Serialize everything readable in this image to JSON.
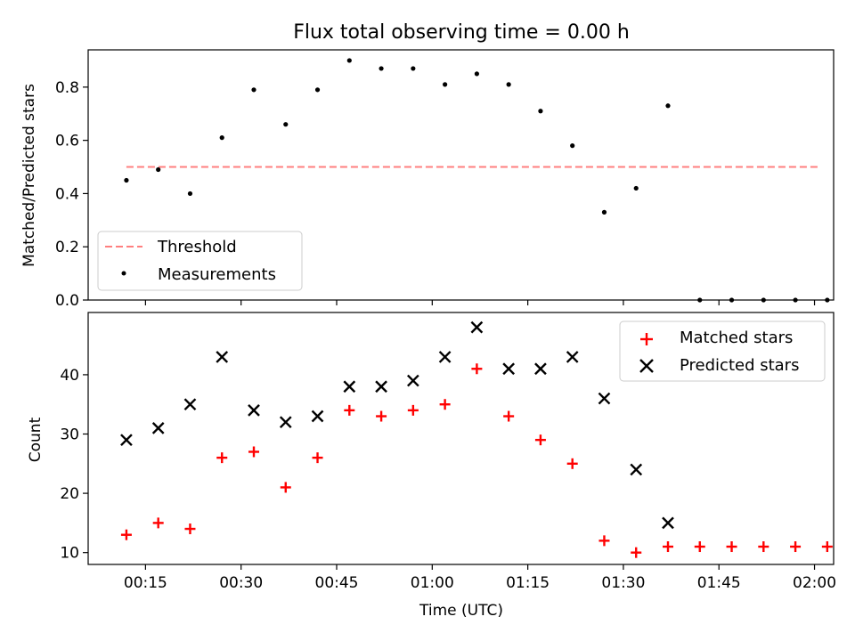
{
  "figure": {
    "title": "Flux total observing time = 0.00 h",
    "xlabel": "Time (UTC)"
  },
  "chart_data": [
    {
      "type": "scatter",
      "ylabel": "Matched/Predicted stars",
      "ylim": [
        0,
        0.94
      ],
      "yticks": [
        "0.0",
        "0.2",
        "0.4",
        "0.6",
        "0.8"
      ],
      "xlim": [
        "00:06",
        "02:03"
      ],
      "xticks": [
        "00:15",
        "00:30",
        "00:45",
        "01:00",
        "01:15",
        "01:30",
        "01:45",
        "02:00"
      ],
      "legend_position": "lower-left",
      "threshold": {
        "name": "Threshold",
        "value": 0.5,
        "x_start": "00:12",
        "x_end": "02:01",
        "color": "#ff7f7f",
        "style": "dashed"
      },
      "series": [
        {
          "name": "Measurements",
          "color": "#000000",
          "marker": "dot",
          "x": [
            "00:12",
            "00:17",
            "00:22",
            "00:27",
            "00:32",
            "00:37",
            "00:42",
            "00:47",
            "00:52",
            "00:57",
            "01:02",
            "01:07",
            "01:12",
            "01:17",
            "01:22",
            "01:27",
            "01:32",
            "01:37",
            "01:42",
            "01:47",
            "01:52",
            "01:57",
            "02:02"
          ],
          "y": [
            0.45,
            0.49,
            0.4,
            0.61,
            0.79,
            0.66,
            0.79,
            0.9,
            0.87,
            0.87,
            0.81,
            0.85,
            0.81,
            0.71,
            0.58,
            0.33,
            0.42,
            0.73,
            0.0,
            0.0,
            0.0,
            0.0,
            0.0
          ]
        }
      ]
    },
    {
      "type": "scatter",
      "ylabel": "Count",
      "ylim": [
        8,
        50.5
      ],
      "yticks": [
        "10",
        "20",
        "30",
        "40"
      ],
      "xlim": [
        "00:06",
        "02:03"
      ],
      "xticks": [
        "00:15",
        "00:30",
        "00:45",
        "01:00",
        "01:15",
        "01:30",
        "01:45",
        "02:00"
      ],
      "legend_position": "top-right",
      "series": [
        {
          "name": "Matched stars",
          "color": "#ff0000",
          "marker": "plus",
          "x": [
            "00:12",
            "00:17",
            "00:22",
            "00:27",
            "00:32",
            "00:37",
            "00:42",
            "00:47",
            "00:52",
            "00:57",
            "01:02",
            "01:07",
            "01:12",
            "01:17",
            "01:22",
            "01:27",
            "01:32",
            "01:37",
            "01:42",
            "01:47",
            "01:52",
            "01:57",
            "02:02"
          ],
          "y": [
            13,
            15,
            14,
            26,
            27,
            21,
            26,
            34,
            33,
            34,
            35,
            41,
            33,
            29,
            25,
            12,
            10,
            11,
            11,
            11,
            11,
            11,
            11
          ]
        },
        {
          "name": "Predicted stars",
          "color": "#000000",
          "marker": "x",
          "x": [
            "00:12",
            "00:17",
            "00:22",
            "00:27",
            "00:32",
            "00:37",
            "00:42",
            "00:47",
            "00:52",
            "00:57",
            "01:02",
            "01:07",
            "01:12",
            "01:17",
            "01:22",
            "01:27",
            "01:32",
            "01:37"
          ],
          "y": [
            29,
            31,
            35,
            43,
            34,
            32,
            33,
            38,
            38,
            39,
            43,
            48,
            41,
            41,
            43,
            36,
            24,
            15
          ]
        }
      ]
    }
  ]
}
